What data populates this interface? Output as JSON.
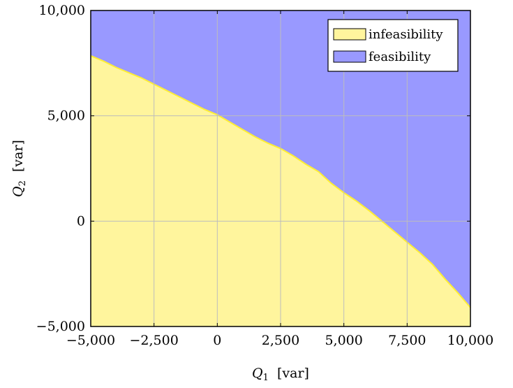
{
  "chart_data": {
    "type": "area",
    "title": "",
    "xlabel": {
      "symbol": "Q",
      "sub": "1",
      "unit": "[var]"
    },
    "ylabel": {
      "symbol": "Q",
      "sub": "2",
      "unit": "[var]"
    },
    "xlim": [
      -5000,
      10000
    ],
    "ylim": [
      -5000,
      10000
    ],
    "xticks": [
      -5000,
      -2500,
      0,
      2500,
      5000,
      7500,
      10000
    ],
    "xtick_labels": [
      "−5,000",
      "−2,500",
      "0",
      "2,500",
      "5,000",
      "7,500",
      "10,000"
    ],
    "yticks": [
      -5000,
      0,
      5000,
      10000
    ],
    "ytick_labels": [
      "−5,000",
      "0",
      "5,000",
      "10,000"
    ],
    "grid": true,
    "legend_position": "top-right",
    "series": [
      {
        "name": "infeasibility",
        "color": "#fff59d",
        "edge": "#ffee33"
      },
      {
        "name": "feasibility",
        "color": "#9999ff"
      }
    ],
    "boundary": {
      "x": [
        -5000,
        -4500,
        -4000,
        -3500,
        -3000,
        -2500,
        -2000,
        -1500,
        -1000,
        -500,
        0,
        500,
        1000,
        1500,
        2000,
        2500,
        3000,
        3500,
        4000,
        4500,
        5000,
        5500,
        6000,
        6500,
        7000,
        7500,
        8000,
        8500,
        9000,
        9500,
        10000
      ],
      "y": [
        7850,
        7600,
        7300,
        7050,
        6800,
        6500,
        6200,
        5900,
        5600,
        5300,
        5050,
        4700,
        4350,
        4000,
        3700,
        3450,
        3100,
        2700,
        2350,
        1800,
        1350,
        950,
        500,
        0,
        -500,
        -1000,
        -1500,
        -2050,
        -2750,
        -3400,
        -4100
      ]
    }
  }
}
